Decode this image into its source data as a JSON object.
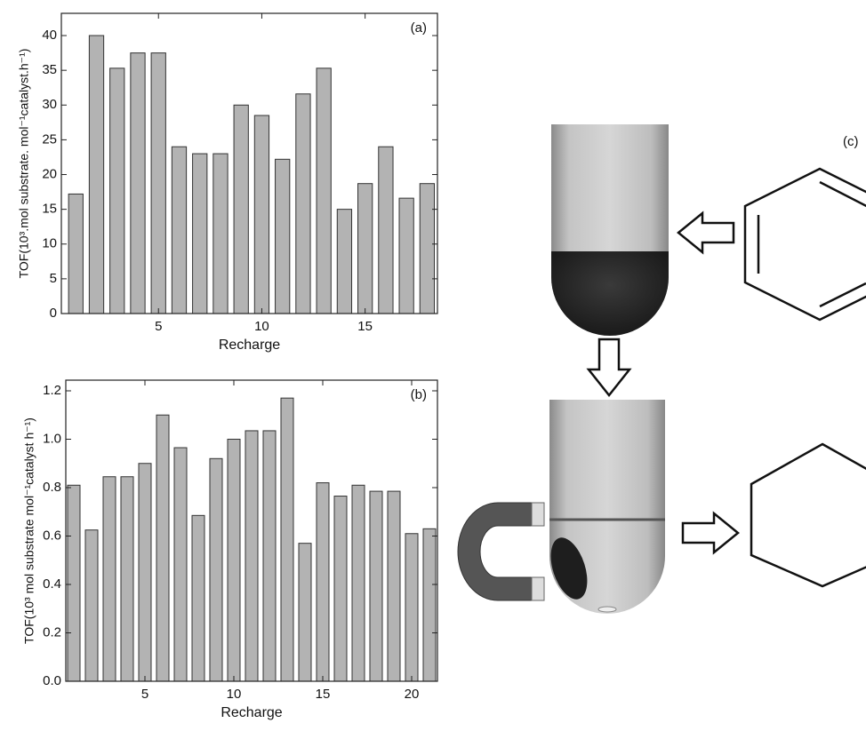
{
  "chart_data": [
    {
      "type": "bar",
      "annotation": "(a)",
      "x_label": "Recharge",
      "y_label": "TOF(10³.mol substrate. mol⁻¹catalyst.h⁻¹)",
      "x": [
        1,
        2,
        3,
        4,
        5,
        6,
        7,
        8,
        9,
        10,
        11,
        12,
        13,
        14,
        15,
        16,
        17,
        18
      ],
      "values": [
        17.2,
        40,
        35.3,
        37.5,
        37.5,
        24,
        23,
        23,
        30,
        28.5,
        22.2,
        31.6,
        35.3,
        15,
        18.7,
        24,
        16.6,
        18.7
      ],
      "color": "#b3b3b3",
      "xlim": [
        0.3,
        18.5
      ],
      "xticks": [
        5,
        10,
        15
      ],
      "ylim": [
        0,
        43.2
      ],
      "yticks": [
        0,
        5,
        10,
        15,
        20,
        25,
        30,
        35,
        40
      ]
    },
    {
      "type": "bar",
      "annotation": "(b)",
      "x_label": "Recharge",
      "y_label": "TOF(10³ mol substrate mol⁻¹catalyst h⁻¹)",
      "x": [
        1,
        2,
        3,
        4,
        5,
        6,
        7,
        8,
        9,
        10,
        11,
        12,
        13,
        14,
        15,
        16,
        17,
        18,
        19,
        20,
        21
      ],
      "values": [
        0.81,
        0.625,
        0.845,
        0.845,
        0.9,
        1.1,
        0.965,
        0.685,
        0.92,
        1.0,
        1.035,
        1.035,
        1.17,
        0.57,
        0.82,
        0.765,
        0.81,
        0.785,
        0.785,
        0.61,
        0.63
      ],
      "color": "#b3b3b3",
      "xlim": [
        0.55,
        21.45
      ],
      "xticks": [
        5,
        10,
        15,
        20
      ],
      "ylim": [
        0,
        1.244
      ],
      "yticks": [
        {
          "value": 0,
          "label": "0.0"
        },
        0.2,
        0.4,
        0.6,
        0.8,
        {
          "value": 1,
          "label": "1.0"
        },
        1.2
      ]
    }
  ],
  "diagram": {
    "label": "(c)"
  }
}
